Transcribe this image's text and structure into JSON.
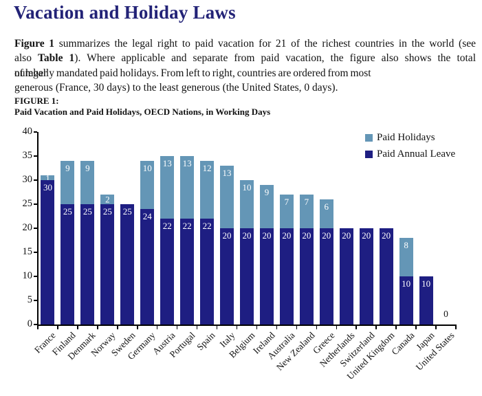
{
  "title": "Vacation and Holiday Laws",
  "paragraph": {
    "line1_bold": "Figure 1",
    "line1_rest": "summarizes the legal right to paid vacation for 21 of the richest countries in the world (see",
    "line2_pre": "also",
    "line2_bold": "Table 1",
    "line2_rest": "). Where applicable and separate from paid vacation, the figure also shows the total",
    "line3_overlap_top": "number",
    "line3_overlap_bottom": "of legally",
    "line3_rest": "mandated paid holidays. From left to right, countries are ordered from most",
    "line4": "generous (France, 30 days) to the least generous (the United States, 0 days)."
  },
  "figure": {
    "label": "FIGURE 1:",
    "subtitle": "Paid Vacation and Paid Holidays, OECD Nations, in Working Days"
  },
  "legend": {
    "position": "top-right",
    "items": [
      {
        "label": "Paid Holidays",
        "color": "#6496b6"
      },
      {
        "label": "Paid Annual Leave",
        "color": "#1e1e82"
      }
    ]
  },
  "chart_data": {
    "type": "bar",
    "stacked": true,
    "title": "Paid Vacation and Paid Holidays, OECD Nations, in Working Days",
    "xlabel": "",
    "ylabel": "",
    "ylim": [
      0,
      40
    ],
    "yticks": [
      0,
      5,
      10,
      15,
      20,
      25,
      30,
      35,
      40
    ],
    "grid": false,
    "legend_position": "top-right",
    "categories": [
      "France",
      "Finland",
      "Denmark",
      "Norway",
      "Sweden",
      "Germany",
      "Austria",
      "Portugal",
      "Spain",
      "Italy",
      "Belgium",
      "Ireland",
      "Australia",
      "New Zealand",
      "Greece",
      "Netherlands",
      "Switzerland",
      "United Kingdom",
      "Canada",
      "Japan",
      "United States"
    ],
    "series": [
      {
        "name": "Paid Annual Leave",
        "color": "#1e1e82",
        "values": [
          30,
          25,
          25,
          25,
          25,
          24,
          22,
          22,
          22,
          20,
          20,
          20,
          20,
          20,
          20,
          20,
          20,
          20,
          10,
          10,
          0
        ]
      },
      {
        "name": "Paid Holidays",
        "color": "#6496b6",
        "values": [
          1,
          9,
          9,
          2,
          0,
          10,
          13,
          13,
          12,
          13,
          10,
          9,
          7,
          7,
          6,
          0,
          0,
          0,
          8,
          0,
          0
        ]
      }
    ],
    "totals": [
      31,
      34,
      34,
      27,
      25,
      34,
      35,
      35,
      34,
      33,
      30,
      29,
      27,
      27,
      26,
      20,
      20,
      20,
      18,
      10,
      0
    ]
  },
  "colors": {
    "title": "#232377",
    "text": "#111111",
    "axis": "#000000",
    "background": "#ffffff"
  }
}
